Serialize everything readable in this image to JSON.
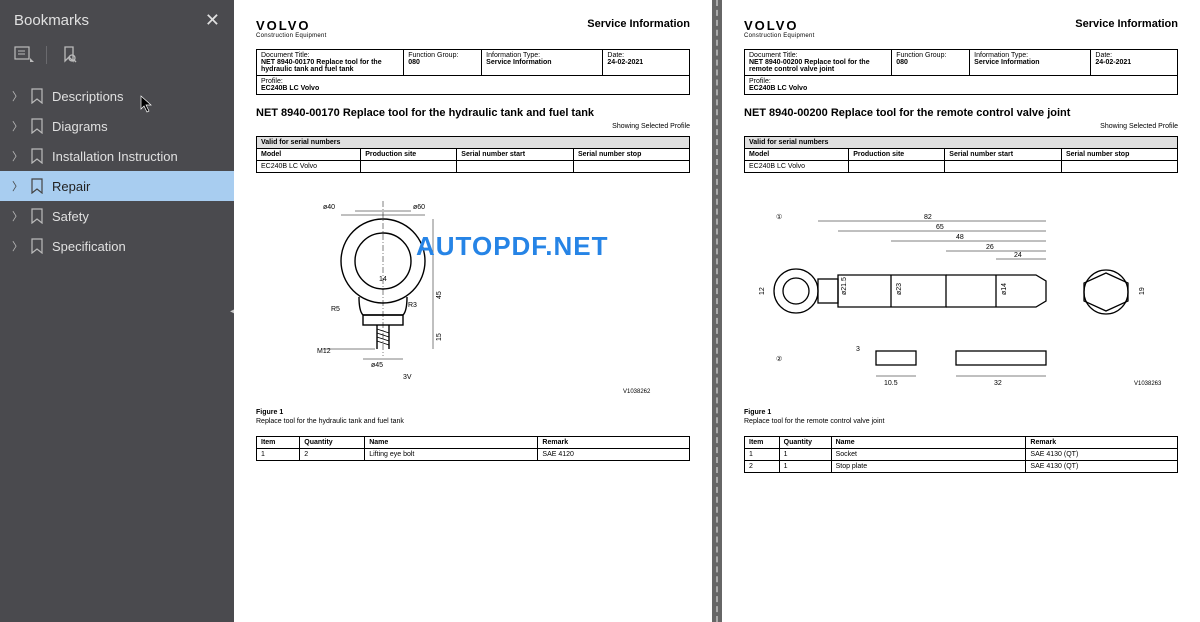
{
  "sidebar": {
    "title": "Bookmarks",
    "items": [
      {
        "label": "Descriptions",
        "active": false
      },
      {
        "label": "Diagrams",
        "active": false
      },
      {
        "label": "Installation Instruction",
        "active": false
      },
      {
        "label": "Repair",
        "active": true
      },
      {
        "label": "Safety",
        "active": false
      },
      {
        "label": "Specification",
        "active": false
      }
    ]
  },
  "watermark": "AUTOPDF.NET",
  "colors": {
    "sidebar_bg": "#4a4a4e",
    "active_bg": "#a8cdf0",
    "watermark": "#2684e6",
    "page_bg": "#ffffff",
    "border": "#000000"
  },
  "pages": [
    {
      "brand": "VOLVO",
      "brand_sub": "Construction Equipment",
      "header_right": "Service Information",
      "info": {
        "doc_title_lbl": "Document Title:",
        "doc_title": "NET 8940-00170 Replace tool for the hydraulic tank and fuel tank",
        "fg_lbl": "Function Group:",
        "fg": "080",
        "it_lbl": "Information Type:",
        "it": "Service Information",
        "date_lbl": "Date:",
        "date": "24-02-2021",
        "profile_lbl": "Profile:",
        "profile": "EC240B LC Volvo"
      },
      "title": "NET 8940-00170 Replace tool for the hydraulic tank and fuel tank",
      "subtitle": "Showing Selected Profile",
      "serial": {
        "hdr": "Valid for serial numbers",
        "cols": [
          "Model",
          "Production site",
          "Serial number start",
          "Serial number stop"
        ],
        "row": [
          "EC240B LC Volvo",
          "",
          "",
          ""
        ]
      },
      "diagram": {
        "type": "engineering-drawing",
        "caption_num": "Figure 1",
        "caption": "Replace tool for the hydraulic tank and fuel tank",
        "ref": "V1038262",
        "dims": {
          "d1": "ø40",
          "d2": "ø60",
          "r1": "R5",
          "r2": "R3",
          "inner": "14",
          "h1": "45",
          "h2": "15",
          "base": "ø45",
          "thread": "M12",
          "cut": "3V"
        }
      },
      "parts": {
        "cols": [
          "Item",
          "Quantity",
          "Name",
          "Remark"
        ],
        "rows": [
          [
            "1",
            "2",
            "Lifting eye bolt",
            "SAE 4120"
          ]
        ]
      }
    },
    {
      "brand": "VOLVO",
      "brand_sub": "Construction Equipment",
      "header_right": "Service Information",
      "info": {
        "doc_title_lbl": "Document Title:",
        "doc_title": "NET 8940-00200 Replace tool for the remote control valve joint",
        "fg_lbl": "Function Group:",
        "fg": "080",
        "it_lbl": "Information Type:",
        "it": "Service Information",
        "date_lbl": "Date:",
        "date": "24-02-2021",
        "profile_lbl": "Profile:",
        "profile": "EC240B LC Volvo"
      },
      "title": "NET 8940-00200 Replace tool for the remote control valve joint",
      "subtitle": "Showing Selected Profile",
      "serial": {
        "hdr": "Valid for serial numbers",
        "cols": [
          "Model",
          "Production site",
          "Serial number start",
          "Serial number stop"
        ],
        "row": [
          "EC240B LC Volvo",
          "",
          "",
          ""
        ]
      },
      "diagram": {
        "type": "engineering-drawing",
        "caption_num": "Figure 1",
        "caption": "Replace tool for the remote control valve joint",
        "ref": "V1038263",
        "dims": {
          "L1": "82",
          "L2": "65",
          "L3": "48",
          "L4": "26",
          "L5": "24",
          "h": "12",
          "d1": "ø21.5",
          "d2": "ø23",
          "d3": "ø14",
          "hex": "19",
          "p2w": "10.5",
          "p2l": "32",
          "p2h": "3",
          "circ1": "①",
          "circ2": "②"
        }
      },
      "parts": {
        "cols": [
          "Item",
          "Quantity",
          "Name",
          "Remark"
        ],
        "rows": [
          [
            "1",
            "1",
            "Socket",
            "SAE 4130 (QT)"
          ],
          [
            "2",
            "1",
            "Stop plate",
            "SAE 4130 (QT)"
          ]
        ]
      }
    }
  ]
}
